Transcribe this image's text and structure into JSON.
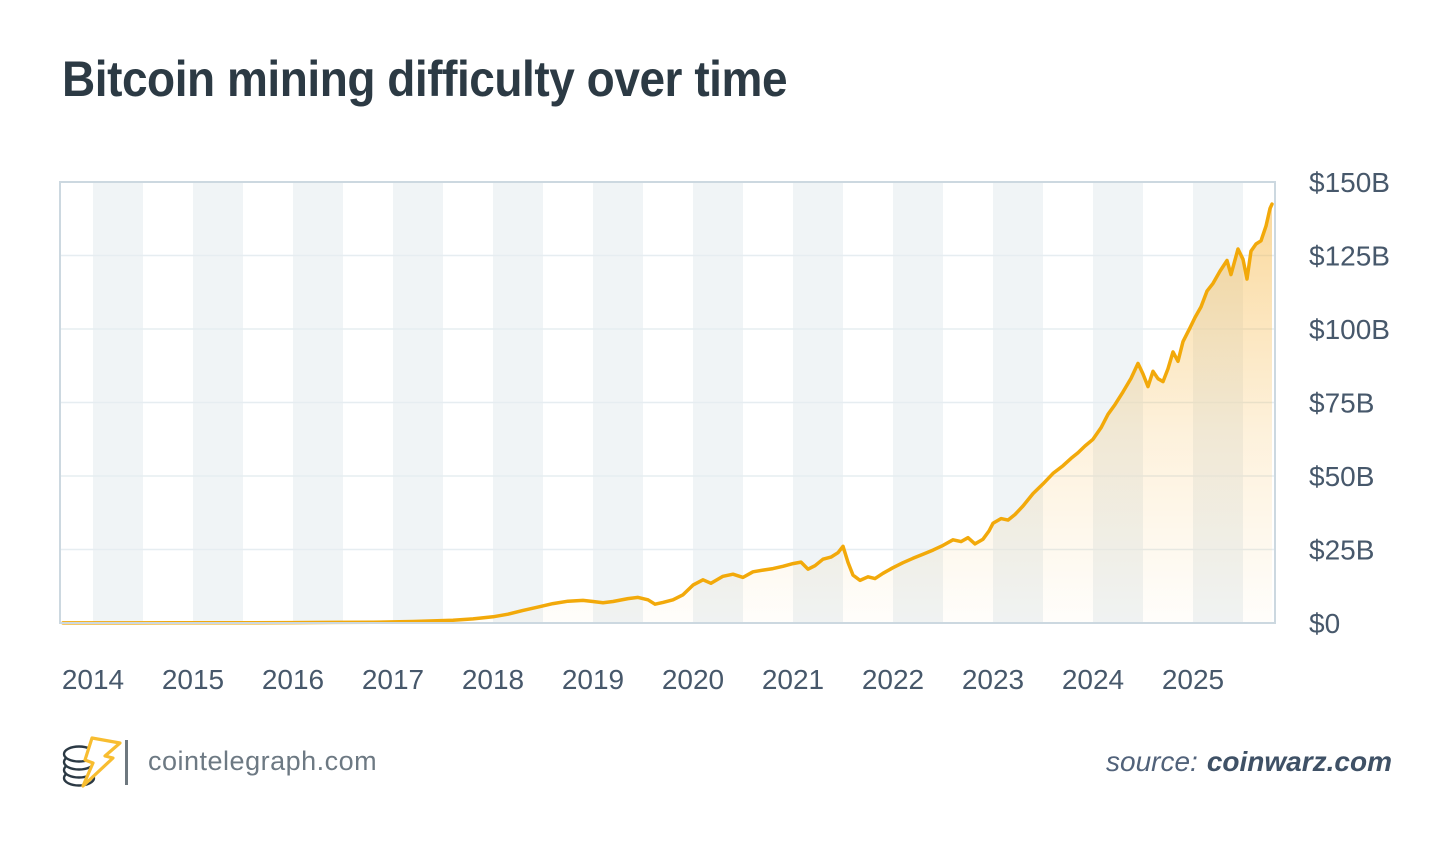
{
  "header": {
    "title": "Bitcoin mining difficulty over time"
  },
  "chart_data": {
    "type": "area",
    "title": "Bitcoin mining difficulty over time",
    "series_name": "Bitcoin mining difficulty",
    "xlabel": "",
    "ylabel": "",
    "xlim": [
      2013.67,
      2025.82
    ],
    "ylim": [
      0,
      150
    ],
    "grid": true,
    "legend": false,
    "stripes": {
      "start_year": 2014,
      "width_years": 0.5,
      "period_years": 1
    },
    "xticks": [
      {
        "label": "2014",
        "value": 2014
      },
      {
        "label": "2015",
        "value": 2015
      },
      {
        "label": "2016",
        "value": 2016
      },
      {
        "label": "2017",
        "value": 2017
      },
      {
        "label": "2018",
        "value": 2018
      },
      {
        "label": "2019",
        "value": 2019
      },
      {
        "label": "2020",
        "value": 2020
      },
      {
        "label": "2021",
        "value": 2021
      },
      {
        "label": "2022",
        "value": 2022
      },
      {
        "label": "2023",
        "value": 2023
      },
      {
        "label": "2024",
        "value": 2024
      },
      {
        "label": "2025",
        "value": 2025
      }
    ],
    "yticks": [
      {
        "label": "$150B",
        "value": 150
      },
      {
        "label": "$125B",
        "value": 125
      },
      {
        "label": "$100B",
        "value": 100
      },
      {
        "label": "$75B",
        "value": 75
      },
      {
        "label": "$50B",
        "value": 50
      },
      {
        "label": "$25B",
        "value": 25
      },
      {
        "label": "$0",
        "value": 0
      }
    ],
    "x": [
      2013.7,
      2014.0,
      2014.4,
      2014.8,
      2015.2,
      2015.6,
      2016.0,
      2016.4,
      2016.8,
      2017.0,
      2017.2,
      2017.4,
      2017.6,
      2017.8,
      2018.0,
      2018.15,
      2018.3,
      2018.45,
      2018.6,
      2018.75,
      2018.9,
      2019.0,
      2019.1,
      2019.2,
      2019.35,
      2019.45,
      2019.55,
      2019.62,
      2019.7,
      2019.8,
      2019.9,
      2020.0,
      2020.1,
      2020.18,
      2020.3,
      2020.4,
      2020.5,
      2020.6,
      2020.7,
      2020.8,
      2020.9,
      2021.0,
      2021.08,
      2021.15,
      2021.22,
      2021.3,
      2021.38,
      2021.45,
      2021.5,
      2021.55,
      2021.6,
      2021.67,
      2021.75,
      2021.82,
      2021.9,
      2022.0,
      2022.1,
      2022.2,
      2022.3,
      2022.4,
      2022.5,
      2022.6,
      2022.68,
      2022.75,
      2022.82,
      2022.9,
      2022.96,
      2023.0,
      2023.08,
      2023.15,
      2023.22,
      2023.3,
      2023.4,
      2023.5,
      2023.6,
      2023.7,
      2023.78,
      2023.85,
      2023.92,
      2024.0,
      2024.08,
      2024.15,
      2024.22,
      2024.3,
      2024.38,
      2024.45,
      2024.5,
      2024.55,
      2024.6,
      2024.65,
      2024.7,
      2024.75,
      2024.8,
      2024.85,
      2024.9,
      2024.97,
      2025.02,
      2025.08,
      2025.14,
      2025.2,
      2025.27,
      2025.34,
      2025.38,
      2025.45,
      2025.5,
      2025.54,
      2025.58,
      2025.63,
      2025.68,
      2025.73,
      2025.77,
      2025.79
    ],
    "values": [
      0.03,
      0.04,
      0.05,
      0.07,
      0.08,
      0.1,
      0.14,
      0.19,
      0.27,
      0.36,
      0.5,
      0.7,
      0.95,
      1.4,
      2.1,
      3.0,
      4.3,
      5.4,
      6.6,
      7.4,
      7.7,
      7.3,
      6.9,
      7.3,
      8.3,
      8.7,
      7.9,
      6.4,
      7.0,
      7.9,
      9.6,
      12.9,
      14.7,
      13.5,
      15.9,
      16.6,
      15.5,
      17.4,
      18.0,
      18.5,
      19.3,
      20.2,
      20.7,
      18.3,
      19.5,
      21.7,
      22.4,
      23.9,
      26.1,
      20.6,
      16.3,
      14.5,
      15.7,
      15.1,
      16.9,
      18.8,
      20.5,
      22.0,
      23.4,
      24.8,
      26.4,
      28.3,
      27.7,
      29.0,
      26.9,
      28.5,
      31.3,
      33.9,
      35.5,
      35.0,
      36.9,
      39.8,
      44.0,
      47.3,
      50.9,
      53.5,
      56.0,
      57.9,
      60.2,
      62.5,
      66.4,
      71.0,
      74.3,
      78.6,
      83.2,
      88.3,
      84.7,
      80.4,
      85.6,
      83.1,
      82.1,
      86.5,
      92.2,
      89.0,
      95.7,
      100.4,
      103.9,
      107.5,
      112.9,
      115.5,
      119.7,
      123.3,
      118.5,
      127.2,
      123.7,
      117.0,
      126.5,
      128.9,
      130.0,
      135.0,
      141.0,
      142.5
    ],
    "colors": {
      "line": "#f2a90a",
      "fill": "#f5b33c",
      "stripe": "#f0f4f6",
      "grid": "#e6edf1",
      "border": "#ccd8e0",
      "tick_label": "#47586b",
      "title": "#2c3a44",
      "brand_yellow": "#f8bd30",
      "logo_dark": "#2b3944"
    }
  },
  "footer": {
    "logo_icon": "cointelegraph-coins-bolt-logo",
    "site": "cointelegraph.com",
    "source_prefix": "source:",
    "source_name": "coinwarz.com"
  }
}
